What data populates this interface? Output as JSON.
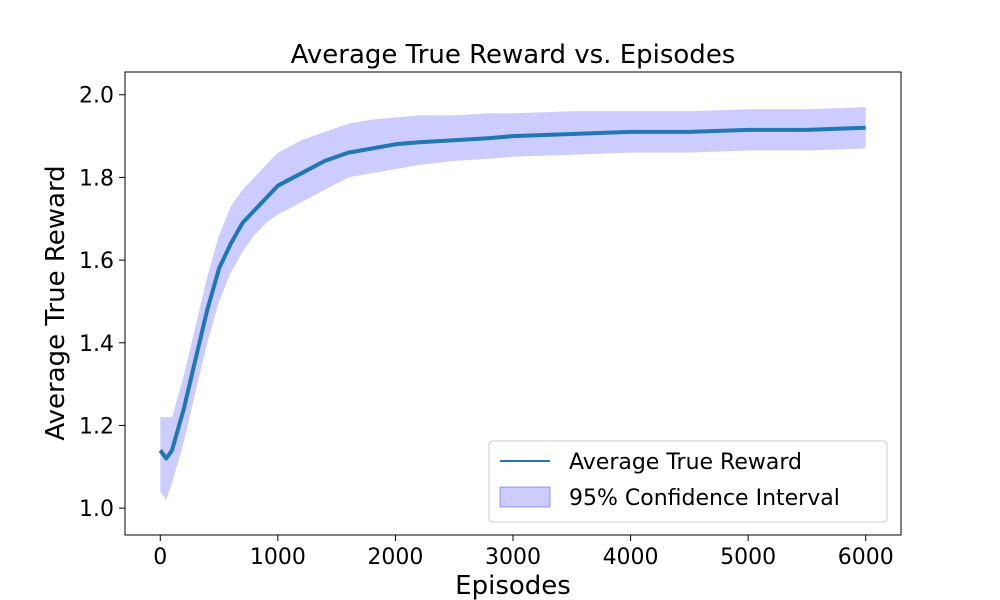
{
  "chart_data": {
    "type": "line",
    "title": "Average True Reward vs. Episodes",
    "xlabel": "Episodes",
    "ylabel": "Average True Reward",
    "xlim": [
      -300,
      6300
    ],
    "ylim": [
      0.935,
      2.055
    ],
    "xticks": [
      0,
      1000,
      2000,
      3000,
      4000,
      5000,
      6000
    ],
    "yticks": [
      1.0,
      1.2,
      1.4,
      1.6,
      1.8,
      2.0
    ],
    "xtick_labels": [
      "0",
      "1000",
      "2000",
      "3000",
      "4000",
      "5000",
      "6000"
    ],
    "ytick_labels": [
      "1.0",
      "1.2",
      "1.4",
      "1.6",
      "1.8",
      "2.0"
    ],
    "grid": false,
    "legend_position": "lower-right",
    "series": [
      {
        "name": "Average True Reward",
        "color": "#1f77b4",
        "x": [
          0,
          50,
          100,
          200,
          300,
          400,
          500,
          600,
          700,
          800,
          900,
          1000,
          1200,
          1400,
          1600,
          1800,
          2000,
          2200,
          2500,
          2800,
          3000,
          3500,
          4000,
          4500,
          5000,
          5500,
          6000
        ],
        "y": [
          1.14,
          1.12,
          1.14,
          1.24,
          1.36,
          1.48,
          1.58,
          1.64,
          1.69,
          1.72,
          1.75,
          1.78,
          1.81,
          1.84,
          1.86,
          1.87,
          1.88,
          1.885,
          1.89,
          1.895,
          1.9,
          1.905,
          1.91,
          1.91,
          1.915,
          1.915,
          1.92
        ]
      },
      {
        "name": "95% Confidence Interval",
        "color": "#0000ff",
        "type": "area",
        "opacity": 0.2,
        "x": [
          0,
          50,
          100,
          200,
          300,
          400,
          500,
          600,
          700,
          800,
          900,
          1000,
          1200,
          1400,
          1600,
          1800,
          2000,
          2200,
          2500,
          2800,
          3000,
          3500,
          4000,
          4500,
          5000,
          5500,
          6000
        ],
        "lower": [
          1.04,
          1.02,
          1.06,
          1.16,
          1.28,
          1.4,
          1.5,
          1.57,
          1.62,
          1.66,
          1.69,
          1.71,
          1.74,
          1.77,
          1.8,
          1.81,
          1.82,
          1.83,
          1.84,
          1.845,
          1.85,
          1.855,
          1.86,
          1.86,
          1.865,
          1.865,
          1.87
        ],
        "upper": [
          1.22,
          1.22,
          1.22,
          1.32,
          1.44,
          1.56,
          1.66,
          1.73,
          1.77,
          1.8,
          1.83,
          1.86,
          1.89,
          1.91,
          1.93,
          1.94,
          1.945,
          1.95,
          1.95,
          1.955,
          1.955,
          1.96,
          1.96,
          1.96,
          1.965,
          1.965,
          1.97
        ]
      }
    ]
  }
}
